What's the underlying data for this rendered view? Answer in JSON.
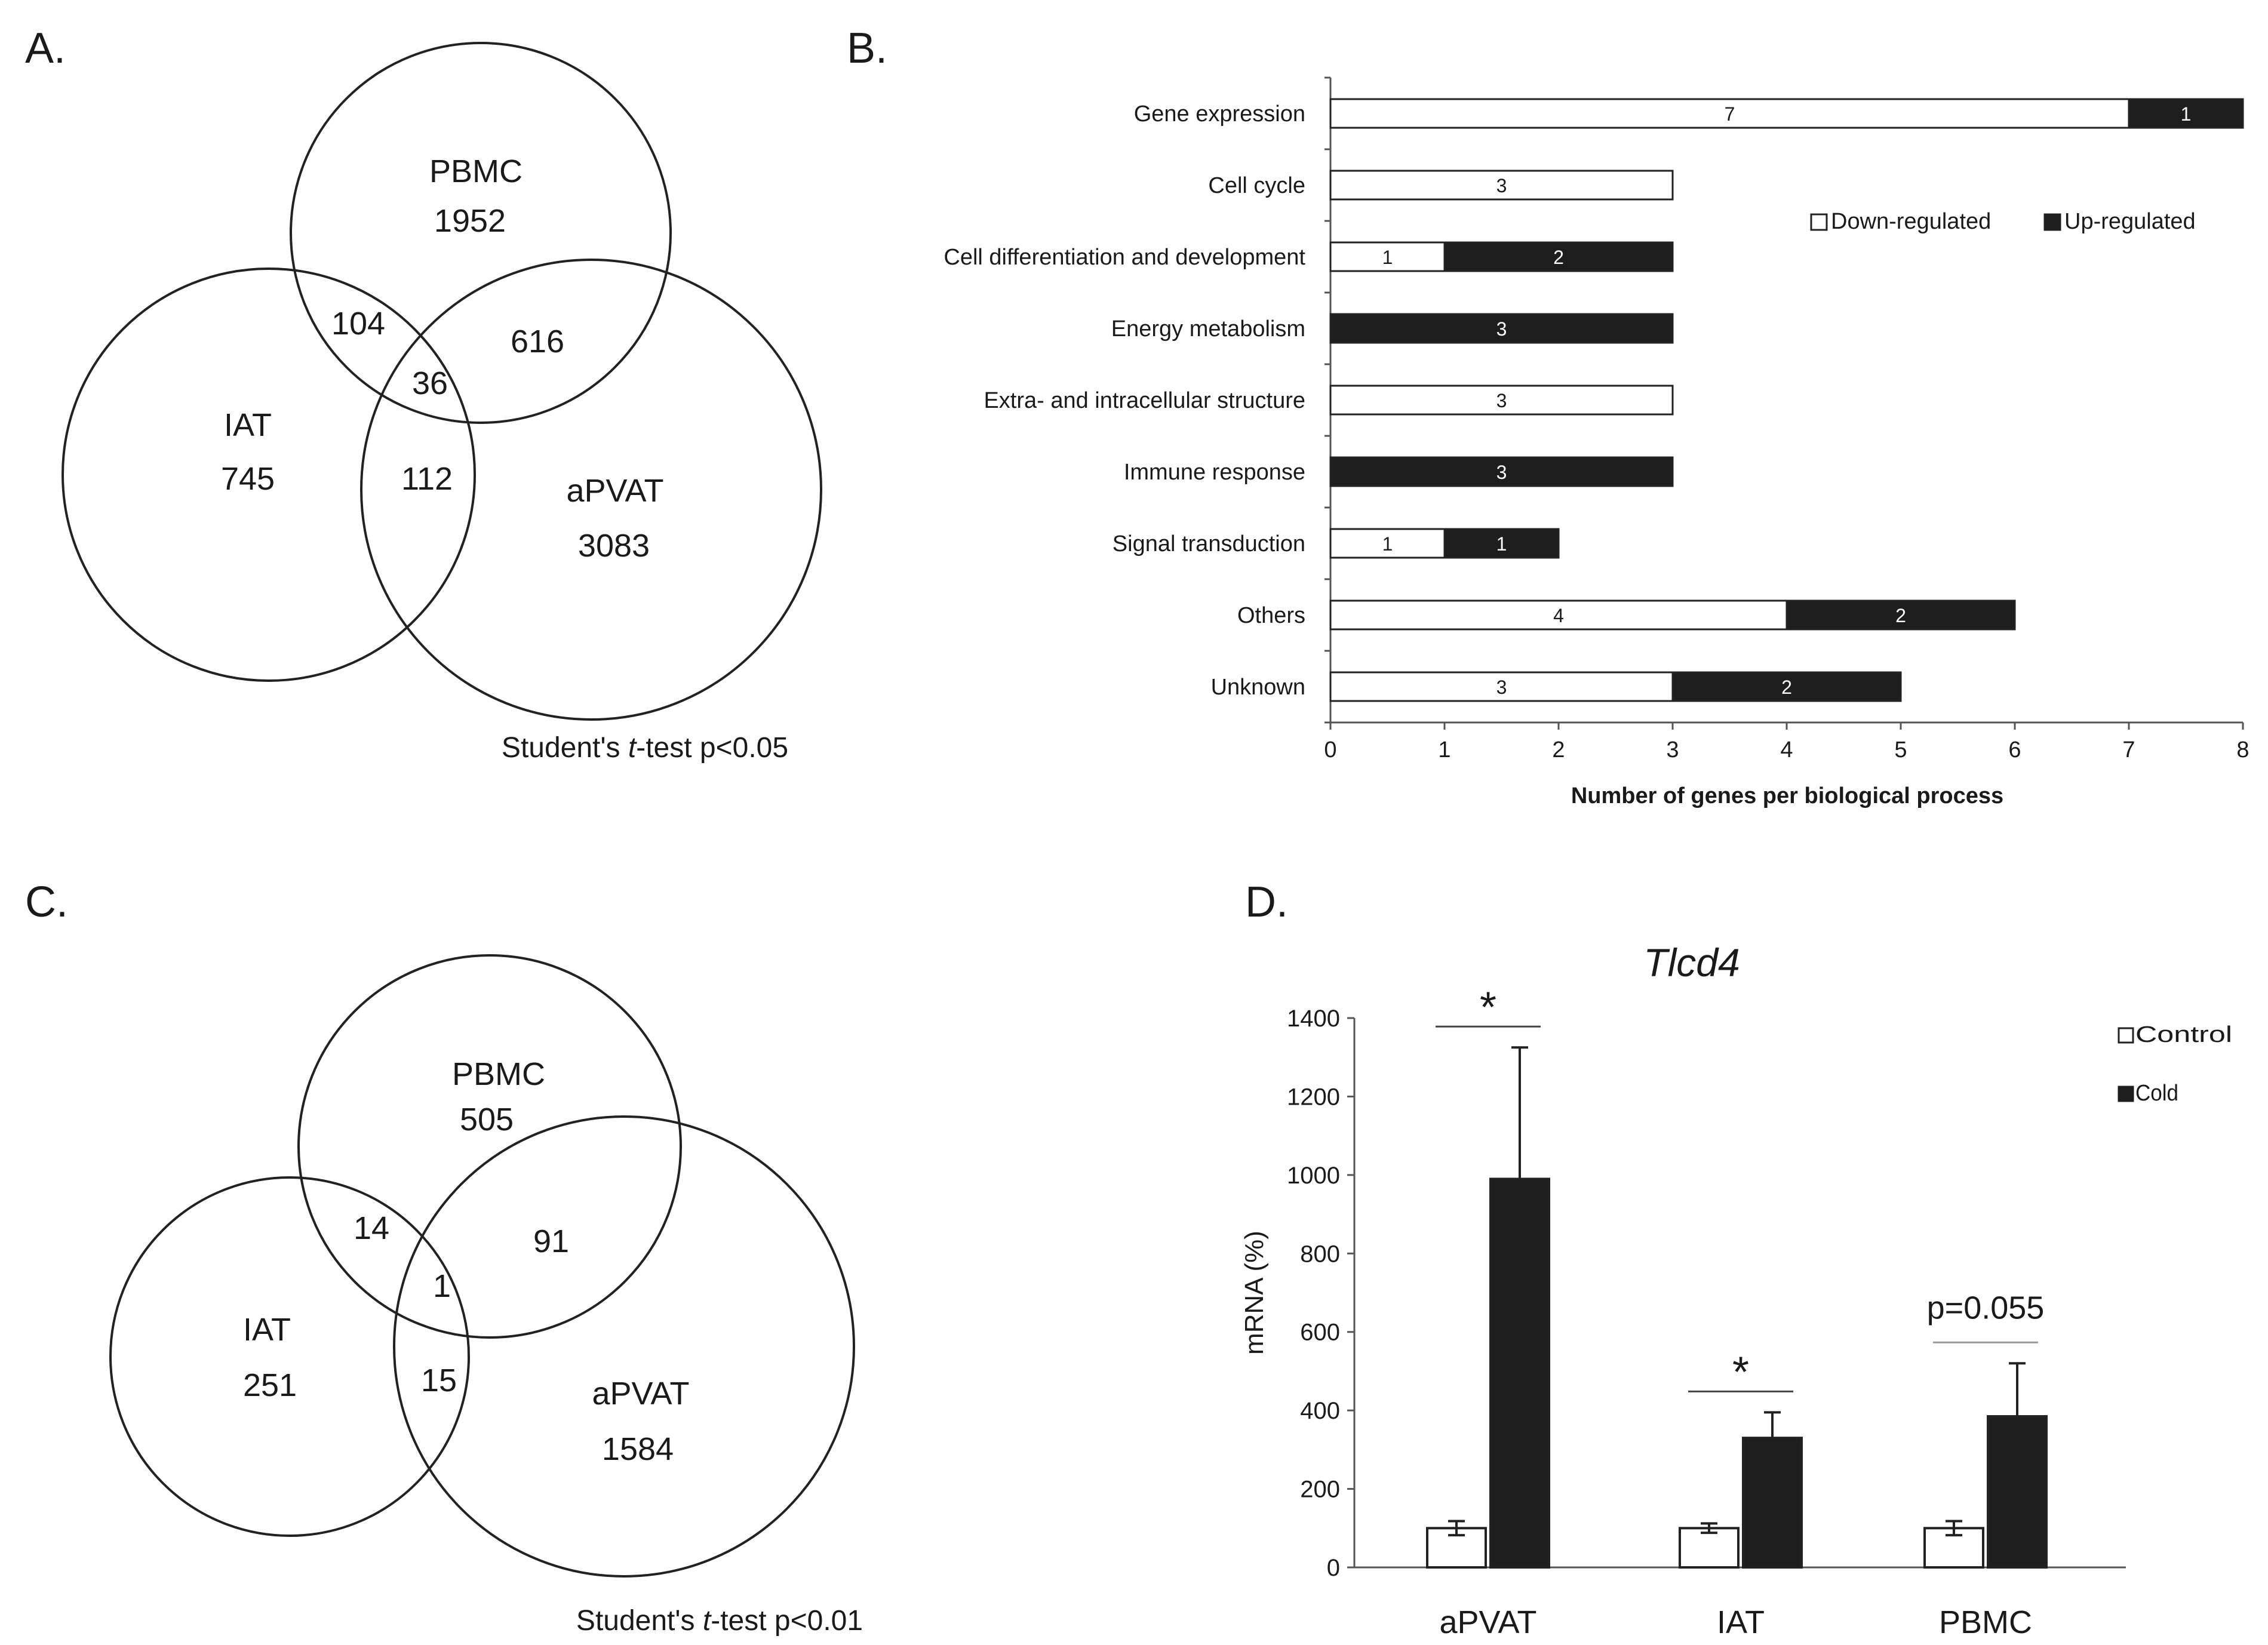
{
  "panels": {
    "a": {
      "label": "A."
    },
    "b": {
      "label": "B."
    },
    "c": {
      "label": "C."
    },
    "d": {
      "label": "D."
    }
  },
  "colors": {
    "dark": "#1e1e1e",
    "light": "#ffffff",
    "line": "#222222",
    "grey_line": "#777777"
  },
  "chart_data": [
    {
      "type": "venn",
      "panel": "A",
      "sets": [
        "PBMC",
        "IAT",
        "aPVAT"
      ],
      "regions": {
        "PBMC_only": "1952",
        "IAT_only": "745",
        "aPVAT_only": "3083",
        "PBMC_IAT": "104",
        "PBMC_aPVAT": "616",
        "IAT_aPVAT": "112",
        "all": "36"
      },
      "footnote": {
        "prefix": "Student's ",
        "italic": "t",
        "suffix": "-test  p<0.05"
      }
    },
    {
      "type": "bar",
      "orientation": "horizontal",
      "stacked": true,
      "panel": "B",
      "categories": [
        "Gene expression",
        "Cell cycle",
        "Cell differentiation and development",
        "Energy metabolism",
        "Extra- and intracellular structure",
        "Immune response",
        "Signal transduction",
        "Others",
        "Unknown"
      ],
      "series": [
        {
          "name": "Down-regulated",
          "values": [
            7,
            3,
            1,
            0,
            3,
            0,
            1,
            4,
            3
          ]
        },
        {
          "name": "Up-regulated",
          "values": [
            1,
            0,
            2,
            3,
            0,
            3,
            1,
            2,
            2
          ]
        }
      ],
      "xlabel": "Number of genes per biological process",
      "xlim": [
        0,
        8
      ],
      "xticks": [
        "0",
        "1",
        "2",
        "3",
        "4",
        "5",
        "6",
        "7",
        "8"
      ],
      "legend_position": "right"
    },
    {
      "type": "venn",
      "panel": "C",
      "sets": [
        "PBMC",
        "IAT",
        "aPVAT"
      ],
      "regions": {
        "PBMC_only": "505",
        "IAT_only": "251",
        "aPVAT_only": "1584",
        "PBMC_IAT": "14",
        "PBMC_aPVAT": "91",
        "IAT_aPVAT": "15",
        "all": "1"
      },
      "footnote": {
        "prefix": "Student's ",
        "italic": "t",
        "suffix": "-test  p<0.01"
      }
    },
    {
      "type": "bar",
      "panel": "D",
      "title": "Tlcd4",
      "categories": [
        "aPVAT",
        "IAT",
        "PBMC"
      ],
      "series": [
        {
          "name": "Control",
          "values": [
            100,
            100,
            100
          ],
          "errors": [
            18,
            12,
            18
          ]
        },
        {
          "name": "Cold",
          "values": [
            990,
            330,
            385
          ],
          "errors": [
            335,
            65,
            135
          ]
        }
      ],
      "ylabel": "mRNA (%)",
      "ylim": [
        0,
        1400
      ],
      "yticks": [
        "0",
        "200",
        "400",
        "600",
        "800",
        "1000",
        "1200",
        "1400"
      ],
      "significance": [
        "*",
        "*",
        "p=0.055"
      ],
      "legend_position": "top-right"
    }
  ]
}
